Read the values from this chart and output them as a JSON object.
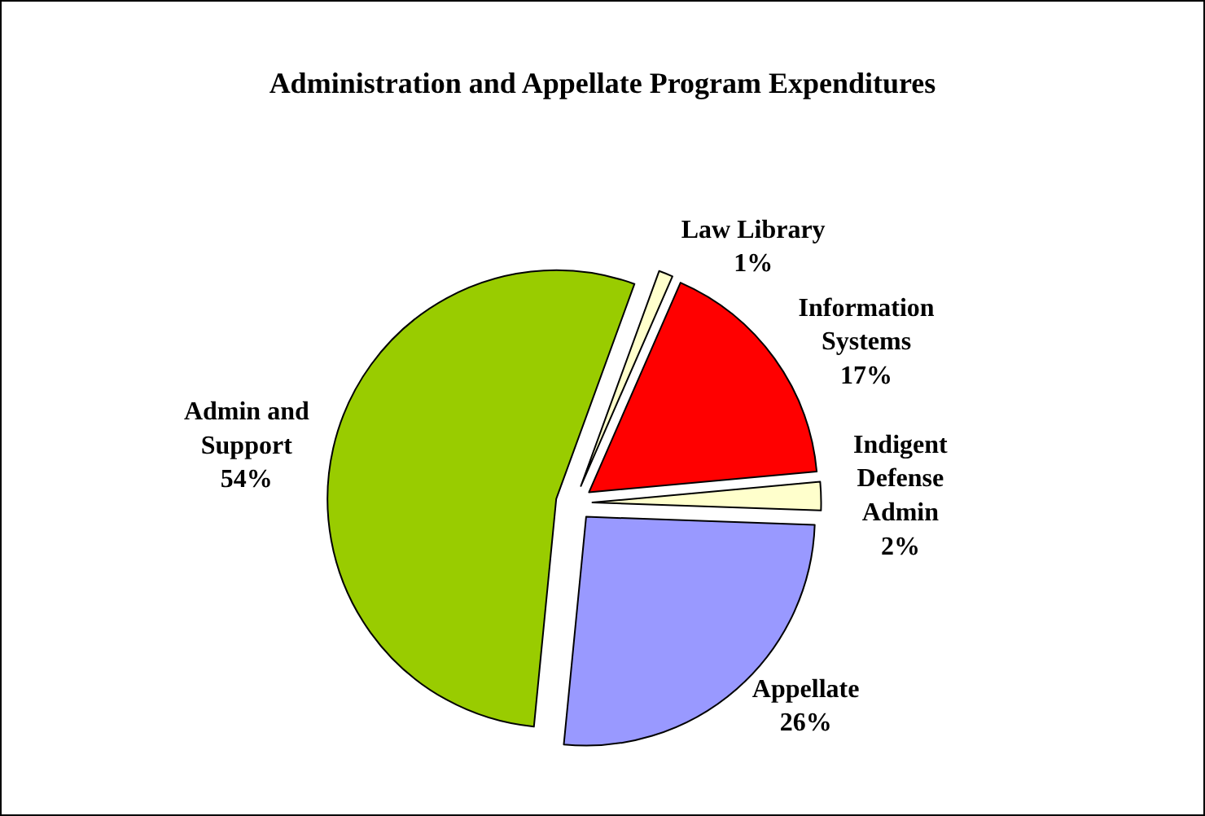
{
  "chart_data": {
    "type": "pie",
    "title": "Administration and Appellate Program Expenditures",
    "categories": [
      "Law Library",
      "Information Systems",
      "Indigent Defense Admin",
      "Appellate",
      "Admin and Support"
    ],
    "values": [
      1,
      17,
      2,
      26,
      54
    ],
    "value_labels": [
      "1%",
      "17%",
      "2%",
      "26%",
      "54%"
    ],
    "colors": [
      "#ffffcc",
      "#ff0000",
      "#ffffcc",
      "#9999ff",
      "#99cc00"
    ],
    "legend": false
  }
}
